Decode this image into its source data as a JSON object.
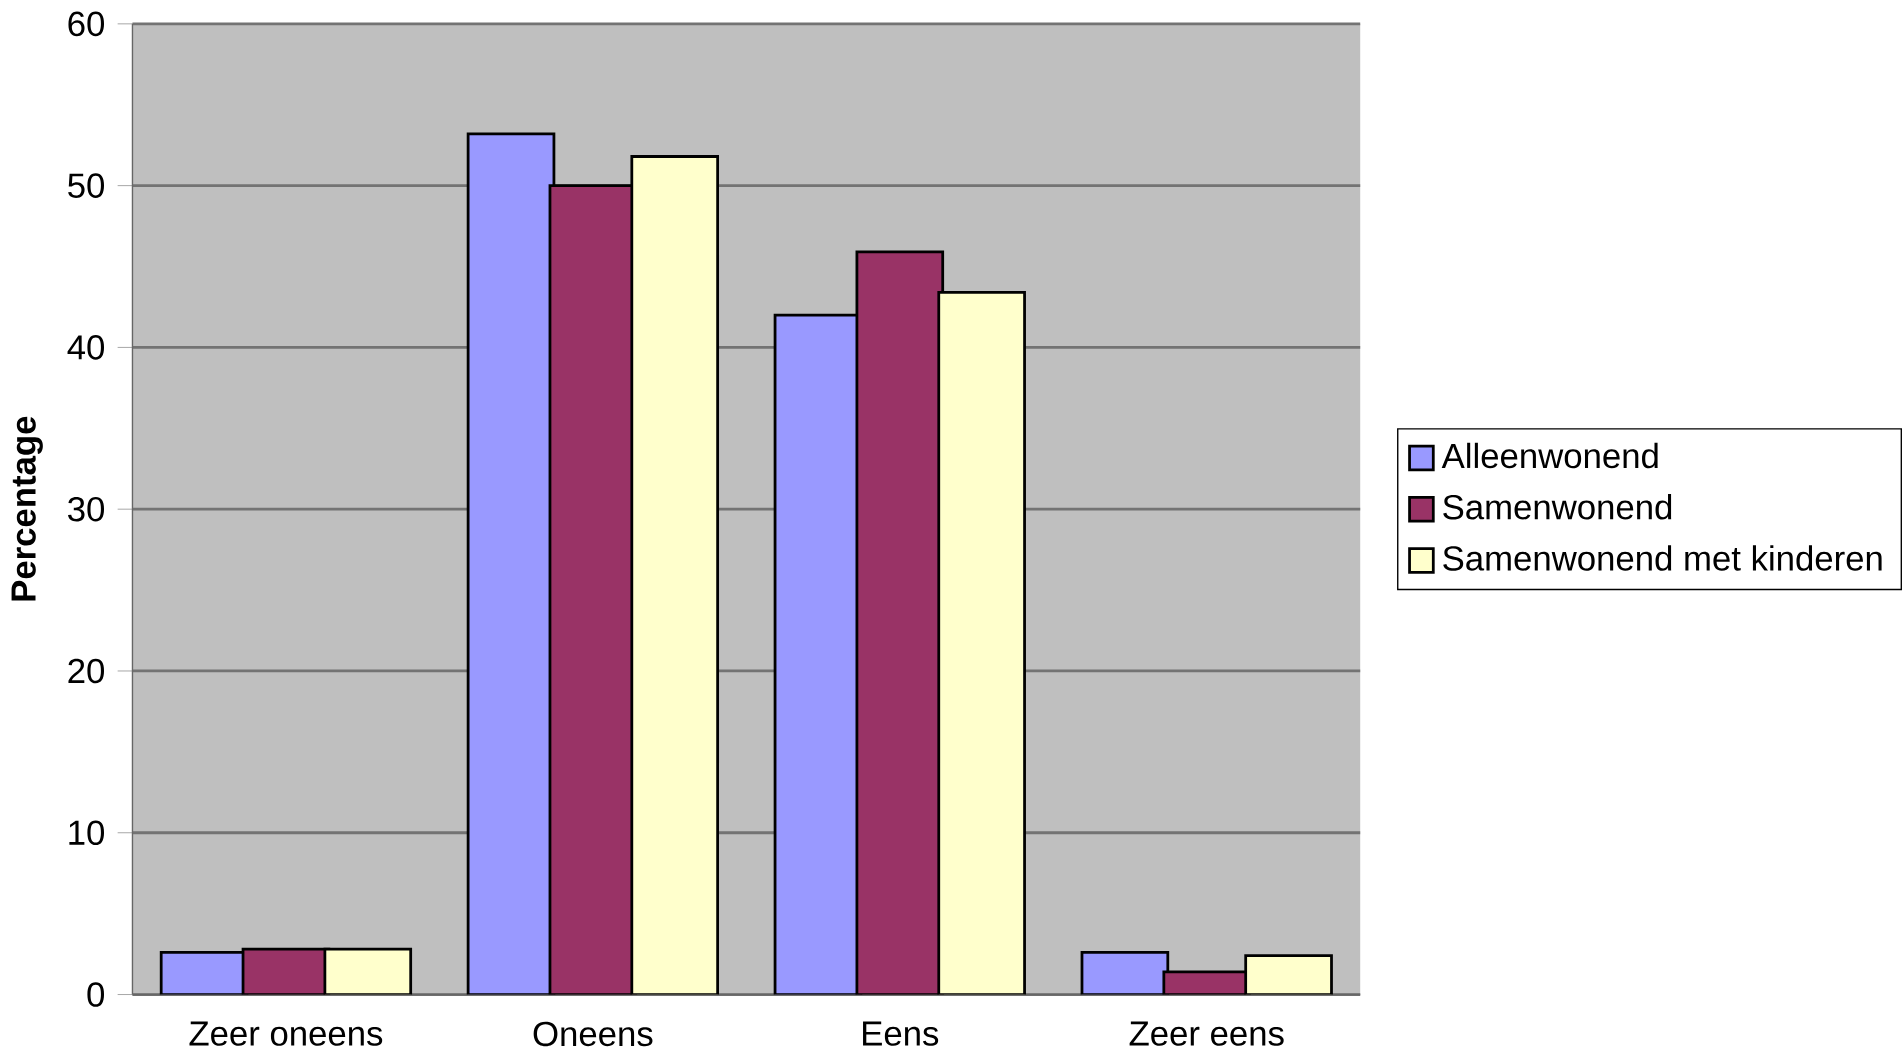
{
  "chart_data": {
    "type": "bar",
    "ylabel": "Percentage",
    "categories": [
      "Zeer oneens",
      "Oneens",
      "Eens",
      "Zeer eens"
    ],
    "series": [
      {
        "name": "Alleenwonend",
        "color": "#9999ff",
        "values": [
          2.6,
          53.2,
          42.0,
          2.6
        ]
      },
      {
        "name": "Samenwonend",
        "color": "#993366",
        "values": [
          2.8,
          50.0,
          45.9,
          1.4
        ]
      },
      {
        "name": "Samenwonend met kinderen",
        "color": "#ffffcc",
        "values": [
          2.8,
          51.8,
          43.4,
          2.4
        ]
      }
    ],
    "ylim": [
      0,
      60
    ],
    "yticks": [
      0,
      10,
      20,
      30,
      40,
      50,
      60
    ],
    "grid": "y",
    "legend": "right"
  }
}
